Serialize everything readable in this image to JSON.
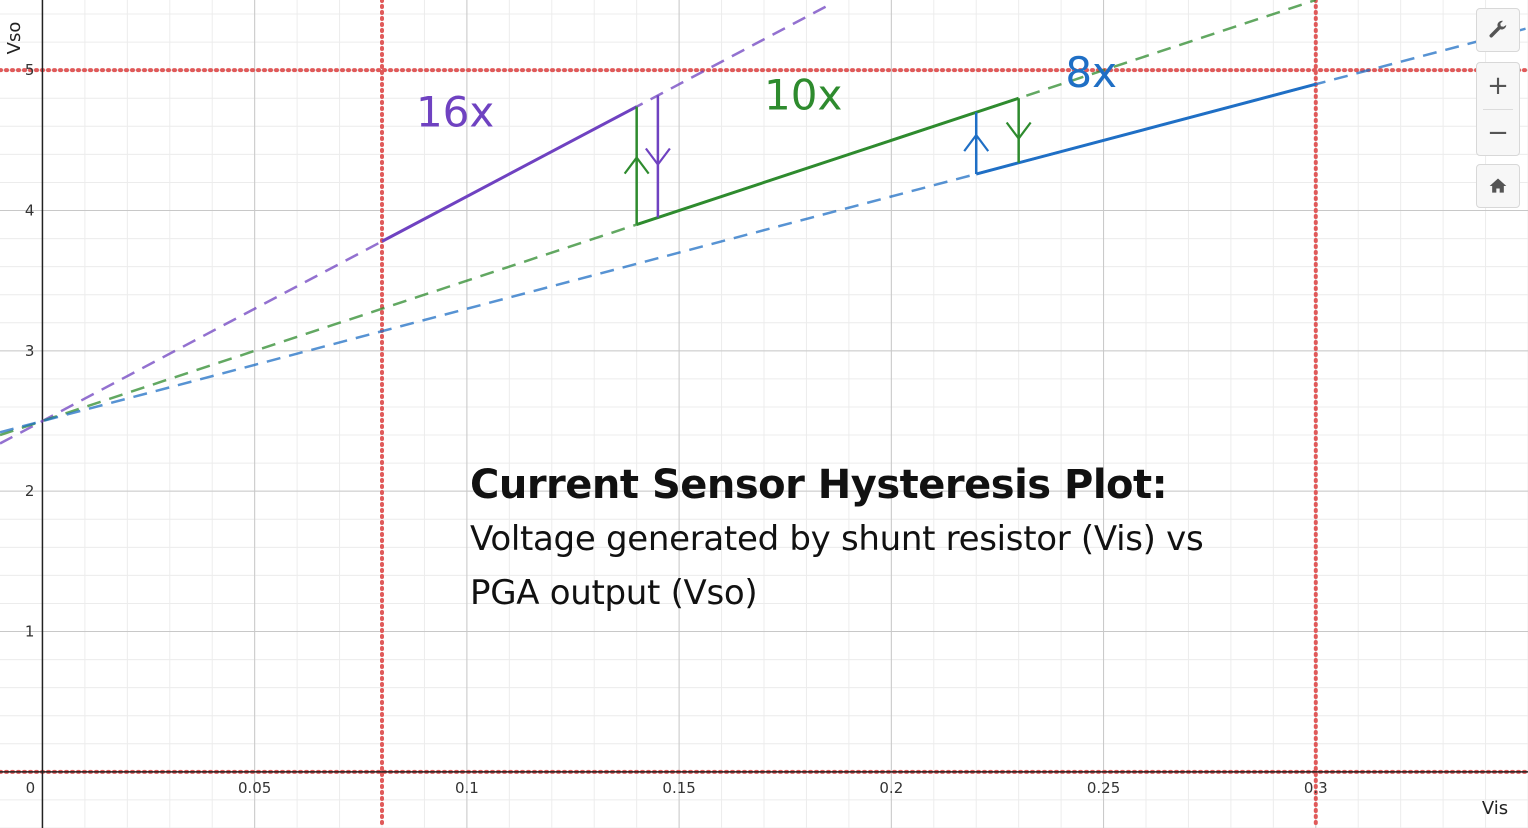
{
  "chart_data": {
    "type": "line",
    "title": "Current Sensor Hysteresis Plot:",
    "subtitle_lines": [
      "Voltage generated by shunt resistor (Vis) vs",
      "PGA output (Vso)"
    ],
    "xlabel": "Vis",
    "ylabel": "Vso",
    "xlim": [
      -0.01,
      0.35
    ],
    "ylim": [
      -0.4,
      5.5
    ],
    "x_ticks": [
      0,
      0.05,
      0.1,
      0.15,
      0.2,
      0.25,
      0.3
    ],
    "x_tick_labels": [
      "0",
      "0.05",
      "0.1",
      "0.15",
      "0.2",
      "0.25",
      "0.3"
    ],
    "y_ticks": [
      1,
      2,
      3,
      4,
      5
    ],
    "y_tick_labels": [
      "1",
      "2",
      "3",
      "4",
      "5"
    ],
    "grid": true,
    "series": [
      {
        "name": "16x",
        "color": "#6f42c1",
        "gain": 16,
        "intercept": 2.5,
        "dashed_x": [
          -0.01,
          0.185
        ],
        "solid_x": [
          0.08,
          0.14
        ],
        "label_at": [
          0.088,
          4.6
        ]
      },
      {
        "name": "10x",
        "color": "#2e8b2e",
        "gain": 10,
        "intercept": 2.5,
        "dashed_x": [
          -0.01,
          0.3
        ],
        "solid_x": [
          0.14,
          0.23
        ],
        "label_at": [
          0.17,
          4.72
        ]
      },
      {
        "name": "8x",
        "color": "#1f6fc5",
        "gain": 8,
        "intercept": 2.5,
        "dashed_x": [
          -0.01,
          0.35
        ],
        "solid_x": [
          0.22,
          0.3
        ],
        "label_at": [
          0.241,
          4.88
        ]
      }
    ],
    "transitions": [
      {
        "x": 0.14,
        "y_from": 3.9,
        "y_to": 4.74,
        "direction": "up",
        "color": "#2e8b2e"
      },
      {
        "x": 0.145,
        "y_from": 4.82,
        "y_to": 3.95,
        "direction": "down",
        "color": "#6f42c1"
      },
      {
        "x": 0.22,
        "y_from": 4.26,
        "y_to": 4.7,
        "direction": "up",
        "color": "#1f6fc5"
      },
      {
        "x": 0.23,
        "y_from": 4.8,
        "y_to": 4.34,
        "direction": "down",
        "color": "#2e8b2e"
      }
    ],
    "limit_lines": {
      "vertical_x": [
        0.08,
        0.3
      ],
      "horizontal_y": [
        0,
        5
      ],
      "color": "#e05a5a",
      "style": "dotted"
    }
  },
  "toolbar": {
    "settings_icon": "wrench-icon",
    "zoom_in_label": "+",
    "zoom_out_label": "−",
    "home_icon": "home-icon"
  }
}
